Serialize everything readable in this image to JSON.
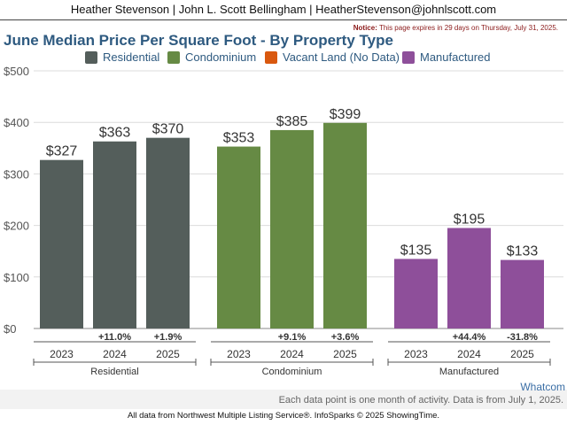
{
  "header": {
    "text": "Heather Stevenson | John L. Scott Bellingham | HeatherStevenson@johnlscott.com"
  },
  "notice": {
    "label": "Notice:",
    "text": "This page expires in 29 days on Thursday, July 31, 2025."
  },
  "chart_data": {
    "type": "bar",
    "title": "June Median Price Per Square Foot - By Property Type",
    "legend": [
      "Residential",
      "Condominium",
      "Vacant Land (No Data)",
      "Manufactured"
    ],
    "colors": {
      "Residential": "#545e5b",
      "Condominium": "#668a44",
      "Vacant Land (No Data)": "#d9580f",
      "Manufactured": "#8e4f9a"
    },
    "y_ticks": [
      "$0",
      "$100",
      "$200",
      "$300",
      "$400",
      "$500"
    ],
    "ylim": [
      0,
      500
    ],
    "grid": true,
    "groups": [
      {
        "name": "Residential",
        "years": [
          "2023",
          "2024",
          "2025"
        ],
        "values": [
          327,
          363,
          370
        ],
        "value_labels": [
          "$327",
          "$363",
          "$370"
        ],
        "changes": [
          "",
          "+11.0%",
          "+1.9%"
        ]
      },
      {
        "name": "Condominium",
        "years": [
          "2023",
          "2024",
          "2025"
        ],
        "values": [
          353,
          385,
          399
        ],
        "value_labels": [
          "$353",
          "$385",
          "$399"
        ],
        "changes": [
          "",
          "+9.1%",
          "+3.6%"
        ]
      },
      {
        "name": "Manufactured",
        "years": [
          "2023",
          "2024",
          "2025"
        ],
        "values": [
          135,
          195,
          133
        ],
        "value_labels": [
          "$135",
          "$195",
          "$133"
        ],
        "changes": [
          "",
          "+44.4%",
          "-31.8%"
        ]
      }
    ]
  },
  "region_label": "Whatcom",
  "footer": {
    "note": "Each data point is one month of activity. Data is from July 1, 2025.",
    "source": "All data from Northwest Multiple Listing Service®. InfoSparks © 2025 ShowingTime."
  }
}
